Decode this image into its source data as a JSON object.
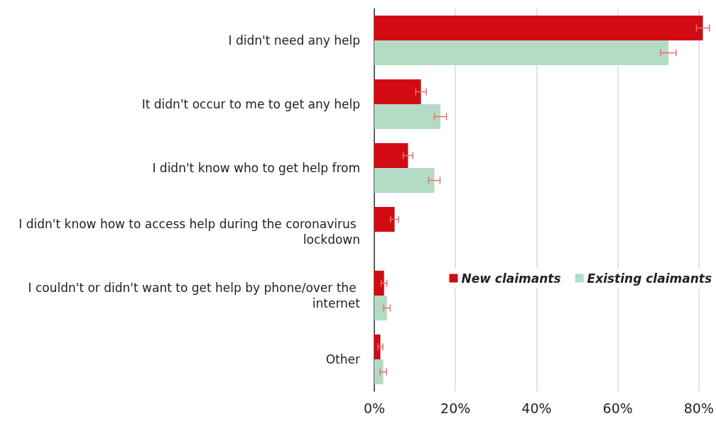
{
  "chart_data": {
    "type": "bar",
    "orientation": "horizontal",
    "categories": [
      "I didn't need any help",
      "It didn't occur to me to get any help",
      "I didn't know who to get help from",
      "I didn't know how to access help during the coronavirus lockdown",
      "I couldn't or didn't want to get help by phone/over the internet",
      "Other"
    ],
    "series": [
      {
        "name": "New claimants",
        "color": "#d20a11",
        "values": [
          81.0,
          11.5,
          8.3,
          5.0,
          2.4,
          1.5
        ],
        "errors": [
          1.6,
          1.3,
          1.2,
          1.0,
          0.7,
          0.6
        ]
      },
      {
        "name": "Existing claimants",
        "color": "#b3dbc6",
        "values": [
          72.5,
          16.3,
          14.8,
          null,
          3.1,
          2.2
        ],
        "errors": [
          1.9,
          1.5,
          1.4,
          null,
          0.8,
          0.8
        ]
      }
    ],
    "xlim": [
      0,
      84
    ],
    "xticks": [
      {
        "value": 0,
        "label": "0%"
      },
      {
        "value": 20,
        "label": "20%"
      },
      {
        "value": 40,
        "label": "40%"
      },
      {
        "value": 60,
        "label": "60%"
      },
      {
        "value": 80,
        "label": "80%"
      }
    ],
    "grid": "x",
    "legend": "right"
  }
}
